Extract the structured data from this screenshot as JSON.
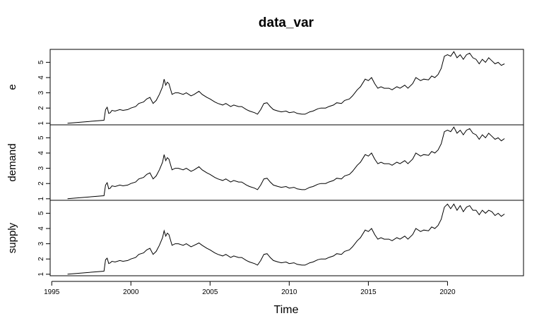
{
  "chart_data": {
    "type": "line",
    "title": "data_var",
    "xlabel": "Time",
    "x_ticks": [
      1995,
      2000,
      2005,
      2010,
      2015,
      2020
    ],
    "xlim": [
      1994.9,
      2024.8
    ],
    "y_ticks": [
      1,
      2,
      3,
      4,
      5
    ],
    "ylim": [
      0.9,
      5.85
    ],
    "grid": false,
    "legend": "none",
    "x": [
      1996.0,
      1998.3,
      1998.4,
      1998.5,
      1998.6,
      1998.7,
      1998.8,
      1999.0,
      1999.3,
      1999.5,
      1999.8,
      2000.0,
      2000.3,
      2000.5,
      2000.8,
      2001.0,
      2001.2,
      2001.4,
      2001.6,
      2001.8,
      2002.0,
      2002.1,
      2002.2,
      2002.3,
      2002.4,
      2002.6,
      2002.8,
      2003.0,
      2003.3,
      2003.5,
      2003.8,
      2004.0,
      2004.3,
      2004.5,
      2004.8,
      2005.0,
      2005.3,
      2005.5,
      2005.8,
      2006.0,
      2006.3,
      2006.5,
      2006.8,
      2007.0,
      2007.3,
      2007.5,
      2007.8,
      2008.0,
      2008.2,
      2008.4,
      2008.6,
      2008.8,
      2009.0,
      2009.3,
      2009.5,
      2009.8,
      2010.0,
      2010.3,
      2010.5,
      2010.8,
      2011.0,
      2011.3,
      2011.5,
      2011.8,
      2012.0,
      2012.3,
      2012.5,
      2012.8,
      2013.0,
      2013.3,
      2013.5,
      2013.8,
      2014.0,
      2014.3,
      2014.5,
      2014.8,
      2015.0,
      2015.2,
      2015.4,
      2015.6,
      2015.8,
      2016.0,
      2016.3,
      2016.5,
      2016.8,
      2017.0,
      2017.3,
      2017.5,
      2017.8,
      2018.0,
      2018.3,
      2018.5,
      2018.8,
      2019.0,
      2019.2,
      2019.4,
      2019.6,
      2019.8,
      2020.0,
      2020.2,
      2020.4,
      2020.6,
      2020.8,
      2021.0,
      2021.2,
      2021.4,
      2021.6,
      2021.8,
      2022.0,
      2022.2,
      2022.4,
      2022.6,
      2022.8,
      2023.0,
      2023.2,
      2023.4,
      2023.6
    ],
    "series": [
      {
        "name": "e",
        "values": [
          1.0,
          1.2,
          1.9,
          2.05,
          1.65,
          1.7,
          1.85,
          1.8,
          1.9,
          1.85,
          1.9,
          2.0,
          2.1,
          2.3,
          2.4,
          2.6,
          2.7,
          2.3,
          2.5,
          2.9,
          3.4,
          3.9,
          3.5,
          3.7,
          3.6,
          2.9,
          3.0,
          3.0,
          2.9,
          3.0,
          2.8,
          2.9,
          3.1,
          2.9,
          2.7,
          2.6,
          2.4,
          2.3,
          2.2,
          2.3,
          2.1,
          2.2,
          2.1,
          2.1,
          1.9,
          1.8,
          1.7,
          1.6,
          1.9,
          2.3,
          2.35,
          2.1,
          1.9,
          1.8,
          1.75,
          1.8,
          1.7,
          1.75,
          1.65,
          1.6,
          1.6,
          1.75,
          1.8,
          1.95,
          2.0,
          2.0,
          2.1,
          2.2,
          2.35,
          2.3,
          2.5,
          2.6,
          2.8,
          3.2,
          3.4,
          3.9,
          3.8,
          4.0,
          3.6,
          3.3,
          3.4,
          3.3,
          3.3,
          3.2,
          3.4,
          3.3,
          3.5,
          3.3,
          3.6,
          4.0,
          3.8,
          3.9,
          3.85,
          4.1,
          4.0,
          4.2,
          4.6,
          5.4,
          5.5,
          5.4,
          5.7,
          5.3,
          5.5,
          5.2,
          5.5,
          5.6,
          5.3,
          5.2,
          4.9,
          5.2,
          5.0,
          5.3,
          5.1,
          4.9,
          5.0,
          4.8,
          4.9
        ]
      },
      {
        "name": "demand",
        "values": [
          1.0,
          1.2,
          1.9,
          2.05,
          1.65,
          1.7,
          1.85,
          1.8,
          1.9,
          1.85,
          1.9,
          2.0,
          2.1,
          2.3,
          2.4,
          2.6,
          2.7,
          2.3,
          2.5,
          2.9,
          3.4,
          3.9,
          3.5,
          3.7,
          3.6,
          2.9,
          3.0,
          3.0,
          2.9,
          3.0,
          2.8,
          2.9,
          3.1,
          2.9,
          2.7,
          2.6,
          2.4,
          2.3,
          2.2,
          2.3,
          2.1,
          2.2,
          2.1,
          2.1,
          1.9,
          1.8,
          1.7,
          1.6,
          1.9,
          2.3,
          2.35,
          2.1,
          1.9,
          1.8,
          1.75,
          1.8,
          1.7,
          1.75,
          1.65,
          1.6,
          1.6,
          1.75,
          1.8,
          1.95,
          2.0,
          2.0,
          2.1,
          2.2,
          2.35,
          2.3,
          2.5,
          2.6,
          2.8,
          3.2,
          3.4,
          3.9,
          3.8,
          4.0,
          3.6,
          3.3,
          3.4,
          3.3,
          3.3,
          3.2,
          3.4,
          3.3,
          3.5,
          3.3,
          3.6,
          4.0,
          3.8,
          3.9,
          3.85,
          4.1,
          4.0,
          4.2,
          4.6,
          5.4,
          5.5,
          5.4,
          5.7,
          5.3,
          5.5,
          5.2,
          5.5,
          5.6,
          5.3,
          5.2,
          4.9,
          5.2,
          5.0,
          5.3,
          5.1,
          4.9,
          5.0,
          4.8,
          4.95
        ]
      },
      {
        "name": "supply",
        "values": [
          1.0,
          1.2,
          1.95,
          2.05,
          1.7,
          1.75,
          1.85,
          1.8,
          1.9,
          1.85,
          1.9,
          2.0,
          2.1,
          2.3,
          2.4,
          2.6,
          2.7,
          2.3,
          2.5,
          2.9,
          3.4,
          3.85,
          3.5,
          3.7,
          3.6,
          2.9,
          3.0,
          3.0,
          2.9,
          3.0,
          2.8,
          2.9,
          3.05,
          2.9,
          2.7,
          2.6,
          2.4,
          2.3,
          2.2,
          2.3,
          2.1,
          2.2,
          2.1,
          2.1,
          1.9,
          1.8,
          1.7,
          1.6,
          1.9,
          2.3,
          2.35,
          2.1,
          1.9,
          1.8,
          1.75,
          1.8,
          1.7,
          1.75,
          1.65,
          1.6,
          1.6,
          1.75,
          1.8,
          1.95,
          2.0,
          2.0,
          2.1,
          2.2,
          2.35,
          2.3,
          2.5,
          2.6,
          2.8,
          3.2,
          3.4,
          3.9,
          3.8,
          4.0,
          3.6,
          3.3,
          3.4,
          3.3,
          3.3,
          3.2,
          3.4,
          3.3,
          3.5,
          3.3,
          3.6,
          4.0,
          3.8,
          3.9,
          3.85,
          4.1,
          4.0,
          4.2,
          4.6,
          5.4,
          5.6,
          5.3,
          5.6,
          5.2,
          5.5,
          5.1,
          5.4,
          5.5,
          5.2,
          5.2,
          4.9,
          5.2,
          5.0,
          5.2,
          5.1,
          4.85,
          5.0,
          4.8,
          4.95
        ]
      }
    ]
  }
}
